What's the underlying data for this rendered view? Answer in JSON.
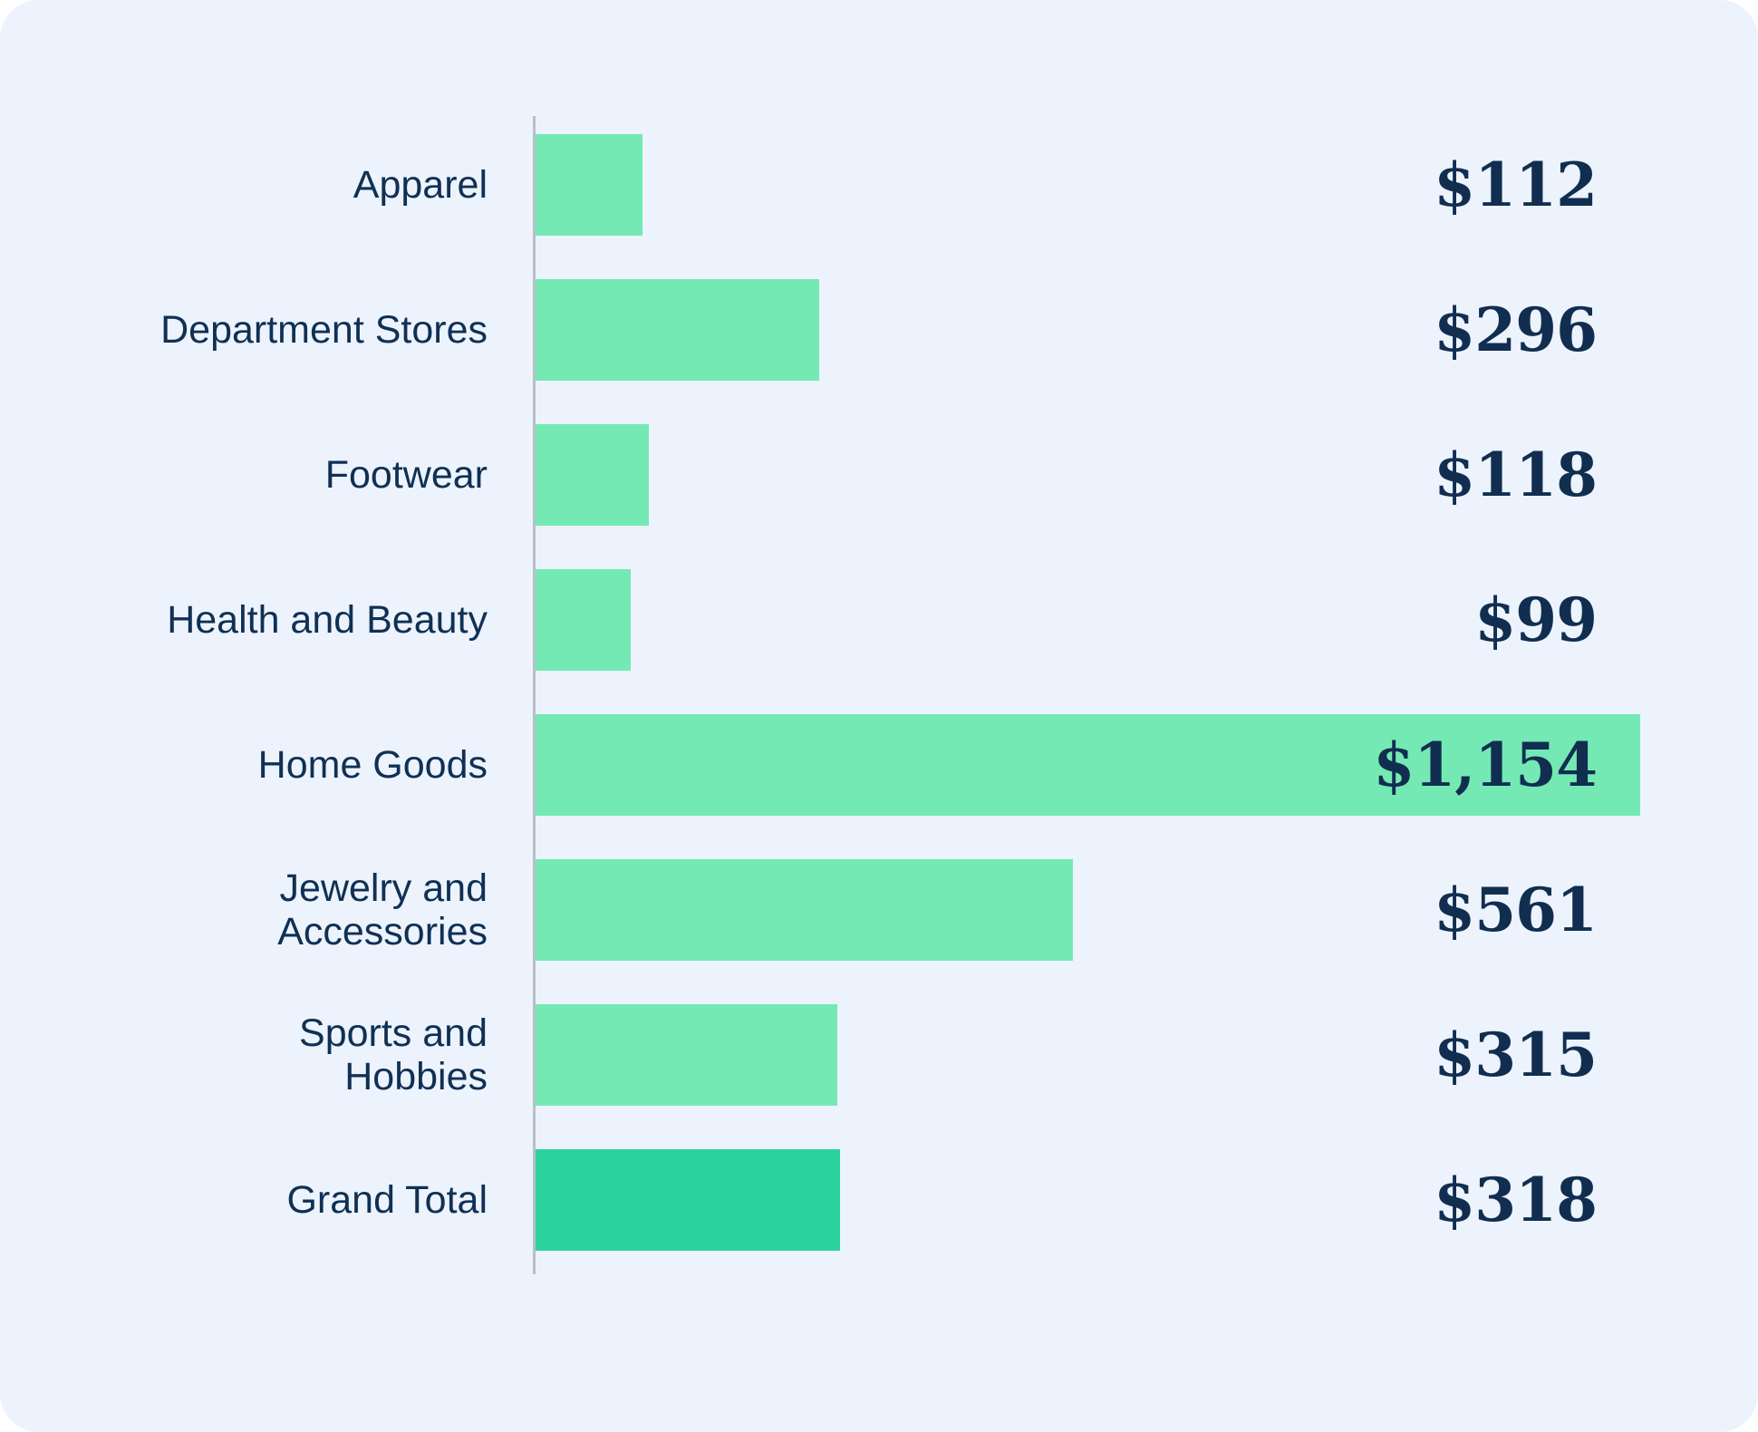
{
  "chart_data": {
    "type": "bar",
    "orientation": "horizontal",
    "title": "",
    "xlabel": "",
    "ylabel": "",
    "categories": [
      "Apparel",
      "Department Stores",
      "Footwear",
      "Health and Beauty",
      "Home Goods",
      "Jewelry and\nAccessories",
      "Sports and\nHobbies",
      "Grand Total"
    ],
    "values": [
      112,
      296,
      118,
      99,
      1154,
      561,
      315,
      318
    ],
    "display_values": [
      "$112",
      "$296",
      "$118",
      "$99",
      "$1,154",
      "$561",
      "$315",
      "$318"
    ],
    "value_prefix": "$",
    "total_category": "Grand Total",
    "xlim": [
      0,
      1154
    ],
    "grid": false,
    "legend": false,
    "value_label_position": "right-aligned-column",
    "colors": {
      "background": "#ecf3fc",
      "bar": "#74e9b4",
      "total_bar": "#2ad39c",
      "label_text": "#103054",
      "value_text": "#112e50",
      "axis_line": "#b9bec8"
    }
  }
}
